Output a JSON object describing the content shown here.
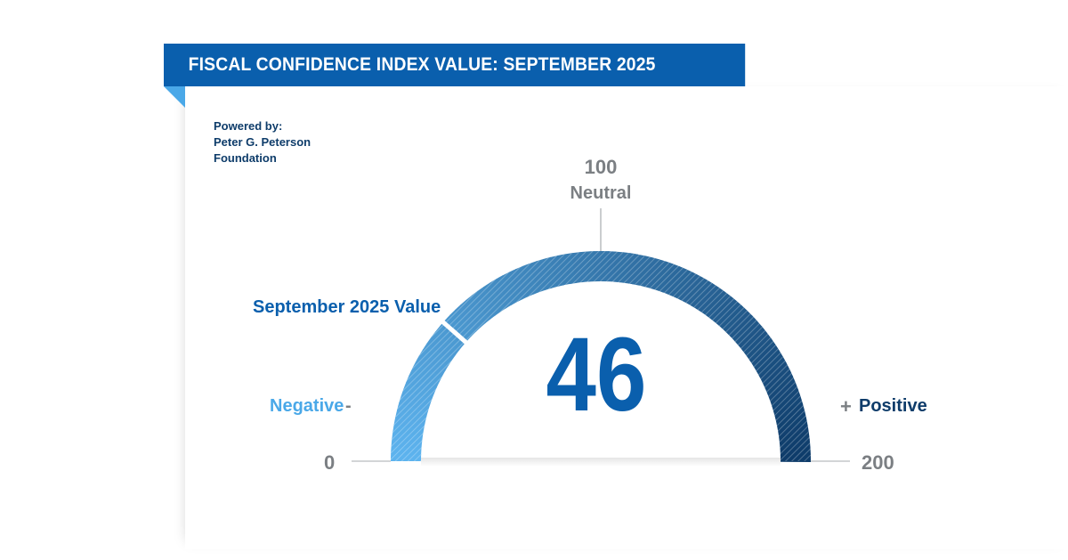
{
  "header": {
    "title": "FISCAL CONFIDENCE INDEX VALUE: SEPTEMBER 2025"
  },
  "attribution": {
    "text": "Powered by:\nPeter G. Peterson\nFoundation"
  },
  "chart_data": {
    "type": "gauge",
    "title": "FISCAL CONFIDENCE INDEX VALUE: SEPTEMBER 2025",
    "value": 46,
    "value_label": "September 2025 Value",
    "min": 0,
    "max": 200,
    "neutral": 100,
    "neutral_label": "Neutral",
    "negative_label": "Negative",
    "positive_label": "Positive",
    "negative_symbol": "-",
    "positive_symbol": "+",
    "colors": {
      "banner": "#0a5fad",
      "value_text": "#0a5fad",
      "gauge_start": "#5db3ee",
      "gauge_end": "#0e3c6a",
      "negative_label": "#4aa8e8",
      "positive_label": "#0e3c6a",
      "neutral_text": "#7b7f83"
    }
  }
}
